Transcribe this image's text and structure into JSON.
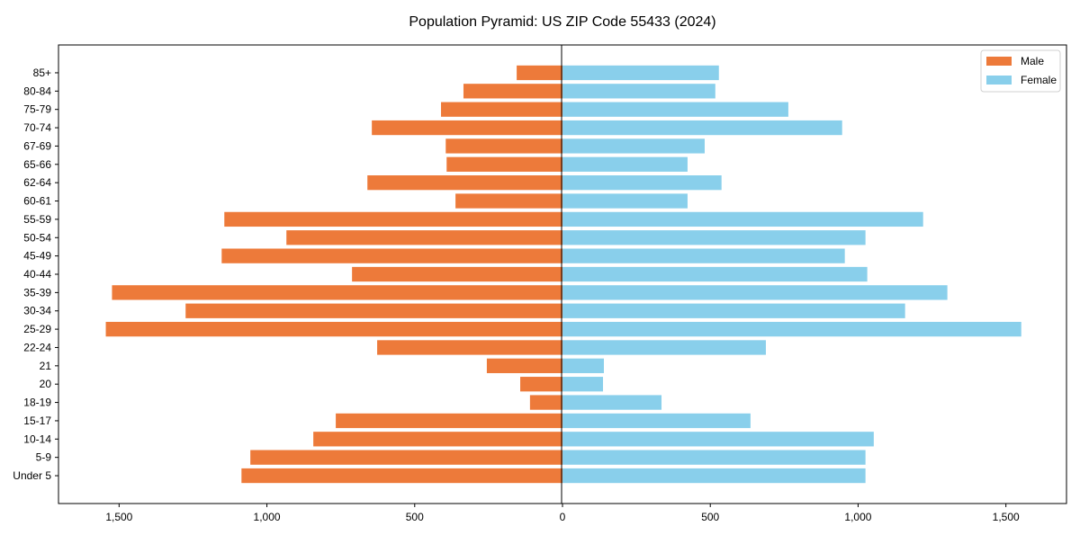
{
  "chart_data": {
    "type": "bar",
    "orientation": "horizontal",
    "title": "Population Pyramid: US ZIP Code 55433 (2024)",
    "xlabel": "",
    "ylabel": "",
    "xlim": [
      -1705,
      1705
    ],
    "xticks": [
      -1500,
      -1000,
      -500,
      0,
      500,
      1000,
      1500
    ],
    "xtick_labels": [
      "1,500",
      "1,000",
      "500",
      "0",
      "500",
      "1,000",
      "1,500"
    ],
    "categories": [
      "Under 5",
      "5-9",
      "10-14",
      "15-17",
      "18-19",
      "20",
      "21",
      "22-24",
      "25-29",
      "30-34",
      "35-39",
      "40-44",
      "45-49",
      "50-54",
      "55-59",
      "60-61",
      "62-64",
      "65-66",
      "67-69",
      "70-74",
      "75-79",
      "80-84",
      "85+"
    ],
    "series": [
      {
        "name": "Male",
        "color": "#ED7A3A",
        "values": [
          1086,
          1056,
          843,
          767,
          110,
          143,
          256,
          627,
          1545,
          1275,
          1524,
          712,
          1153,
          934,
          1144,
          362,
          660,
          392,
          395,
          645,
          411,
          335,
          155
        ]
      },
      {
        "name": "Female",
        "color": "#89CFEB",
        "values": [
          1025,
          1025,
          1053,
          636,
          335,
          137,
          140,
          688,
          1552,
          1159,
          1302,
          1031,
          955,
          1025,
          1220,
          423,
          538,
          423,
          481,
          946,
          764,
          517,
          529
        ]
      }
    ],
    "legend": {
      "placement": "top-right",
      "entries": [
        "Male",
        "Female"
      ]
    },
    "grid": false
  }
}
